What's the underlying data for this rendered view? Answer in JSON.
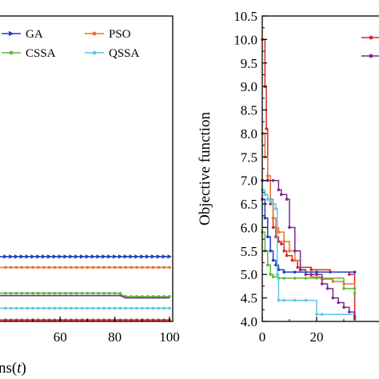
{
  "chart_data": [
    {
      "type": "line",
      "panel": "left",
      "xlabel": "Number of iterations(t)",
      "xlabel_parts": [
        "ns(",
        "t",
        ")"
      ],
      "xlim": [
        0,
        100
      ],
      "x_ticks": [
        "60",
        "80",
        "100"
      ],
      "legend": "top-right",
      "grid": false,
      "series": [
        {
          "name": "GA",
          "color": "#1f3fbf",
          "marker": "triangle-right",
          "x": [
            0,
            100
          ],
          "y": [
            5.38,
            5.38
          ]
        },
        {
          "name": "PSO",
          "color": "#e8742a",
          "marker": "circle",
          "x": [
            0,
            100
          ],
          "y": [
            5.15,
            5.15
          ]
        },
        {
          "name": "CSSA",
          "color": "#5fb83a",
          "marker": "circle",
          "x": [
            0,
            81,
            84,
            100
          ],
          "y": [
            4.6,
            4.6,
            4.53,
            4.53
          ]
        },
        {
          "name": "QSSA",
          "color": "#5ec6e6",
          "marker": "circle",
          "x": [
            0,
            100
          ],
          "y": [
            4.28,
            4.28
          ]
        },
        {
          "name": "",
          "color": "#7a2c8c",
          "marker": "none",
          "x": [
            0,
            82,
            84,
            100
          ],
          "y": [
            4.55,
            4.55,
            4.5,
            4.5
          ]
        },
        {
          "name": "",
          "color": "#d42a2a",
          "marker": "circle",
          "x": [
            0,
            100
          ],
          "y": [
            4.03,
            4.03
          ]
        }
      ]
    },
    {
      "type": "line",
      "panel": "right",
      "ylabel": "Objective function",
      "ylim": [
        4.0,
        10.5
      ],
      "y_ticks": [
        "4.0",
        "4.5",
        "5.0",
        "5.5",
        "6.0",
        "6.5",
        "7.0",
        "7.5",
        "8.0",
        "8.5",
        "9.0",
        "9.5",
        "10.0",
        "10.5"
      ],
      "x_ticks": [
        "0",
        "20"
      ],
      "grid": false,
      "series": [
        {
          "name": "",
          "color": "#d42a2a",
          "x": [
            0,
            1,
            1.5,
            2,
            3,
            4,
            5,
            6,
            7,
            8,
            9,
            11,
            13,
            18,
            25,
            32,
            34
          ],
          "y": [
            10.0,
            9.0,
            8.1,
            7.0,
            6.5,
            6.0,
            5.8,
            5.7,
            5.65,
            5.5,
            5.4,
            5.3,
            5.15,
            5.1,
            5.05,
            5.0,
            4.05
          ]
        },
        {
          "name": "",
          "color": "#e8742a",
          "x": [
            0,
            1,
            2,
            3,
            4,
            5,
            6,
            8,
            10,
            12,
            14,
            16,
            18,
            22,
            26,
            30,
            34
          ],
          "y": [
            8.0,
            7.5,
            7.1,
            6.6,
            6.2,
            6.0,
            5.9,
            5.7,
            5.5,
            5.3,
            5.1,
            5.0,
            4.95,
            4.9,
            4.85,
            4.8,
            4.7
          ]
        },
        {
          "name": "",
          "color": "#1f3fbf",
          "x": [
            0,
            1,
            2,
            3,
            4,
            5,
            6,
            8,
            12,
            20,
            34
          ],
          "y": [
            6.6,
            6.2,
            5.8,
            5.5,
            5.3,
            5.2,
            5.1,
            5.05,
            5.05,
            5.05,
            5.05
          ]
        },
        {
          "name": "",
          "color": "#5fb83a",
          "x": [
            0,
            1,
            2,
            3,
            4,
            6,
            8,
            12,
            16,
            20,
            30,
            34
          ],
          "y": [
            5.9,
            5.5,
            5.2,
            5.0,
            4.95,
            4.92,
            4.92,
            4.92,
            4.92,
            4.92,
            4.7,
            4.6
          ]
        },
        {
          "name": "",
          "color": "#5ec6e6",
          "x": [
            0,
            1,
            2,
            3,
            4,
            5,
            5.5,
            6,
            8,
            12,
            16,
            20,
            22,
            34
          ],
          "y": [
            6.8,
            6.7,
            6.6,
            6.55,
            6.5,
            6.4,
            5.0,
            4.45,
            4.45,
            4.45,
            4.45,
            4.15,
            4.15,
            4.15
          ]
        },
        {
          "name": "",
          "color": "#7a2c8c",
          "x": [
            0,
            2,
            4,
            6,
            7,
            9,
            10,
            12,
            14,
            16,
            18,
            20,
            22,
            24,
            26,
            28,
            30,
            32,
            34
          ],
          "y": [
            7.0,
            7.0,
            7.0,
            6.8,
            6.7,
            6.6,
            6.0,
            5.5,
            5.1,
            5.0,
            5.0,
            5.0,
            4.8,
            4.7,
            4.5,
            4.4,
            4.3,
            4.2,
            4.1
          ]
        }
      ]
    }
  ]
}
